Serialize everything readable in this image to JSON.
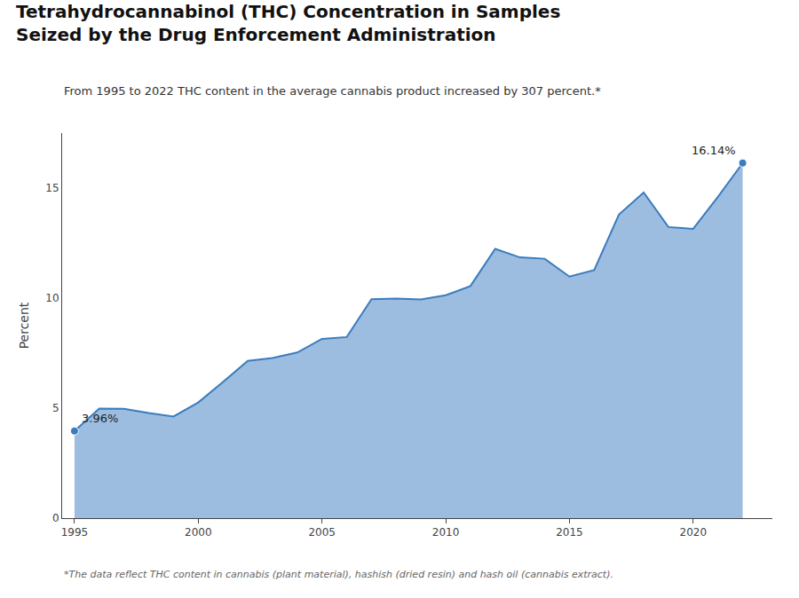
{
  "chart_data": {
    "type": "area",
    "title": "Tetrahydrocannabinol (THC) Concentration in Samples\nSeized by the Drug Enforcement Administration",
    "subtitle": "From 1995 to 2022 THC content in the average cannabis product increased by 307 percent.*",
    "footnote": "*The data reflect THC content in cannabis (plant material), hashish (dried resin) and hash oil (cannabis extract).",
    "ylabel": "Percent",
    "x": [
      1995,
      1996,
      1997,
      1998,
      1999,
      2000,
      2001,
      2002,
      2003,
      2004,
      2005,
      2006,
      2007,
      2008,
      2009,
      2010,
      2011,
      2012,
      2013,
      2014,
      2015,
      2016,
      2017,
      2018,
      2019,
      2020,
      2021,
      2022
    ],
    "values": [
      3.96,
      4.98,
      4.97,
      4.78,
      4.62,
      5.26,
      6.19,
      7.15,
      7.28,
      7.53,
      8.15,
      8.23,
      9.95,
      9.98,
      9.94,
      10.13,
      10.55,
      12.24,
      11.85,
      11.79,
      10.98,
      11.27,
      13.8,
      14.8,
      13.23,
      13.15,
      14.6,
      16.14
    ],
    "color": "#3a7cbf",
    "xlim": [
      1994.5,
      2023.2
    ],
    "ylim": [
      0,
      17.5
    ],
    "xticks": [
      1995,
      2000,
      2005,
      2010,
      2015,
      2020
    ],
    "yticks": [
      0,
      5,
      10,
      15
    ],
    "annotations": [
      {
        "x": 1995,
        "y": 3.96,
        "text": "3.96%"
      },
      {
        "x": 2022,
        "y": 16.14,
        "text": "16.14%"
      }
    ],
    "grid": false
  }
}
